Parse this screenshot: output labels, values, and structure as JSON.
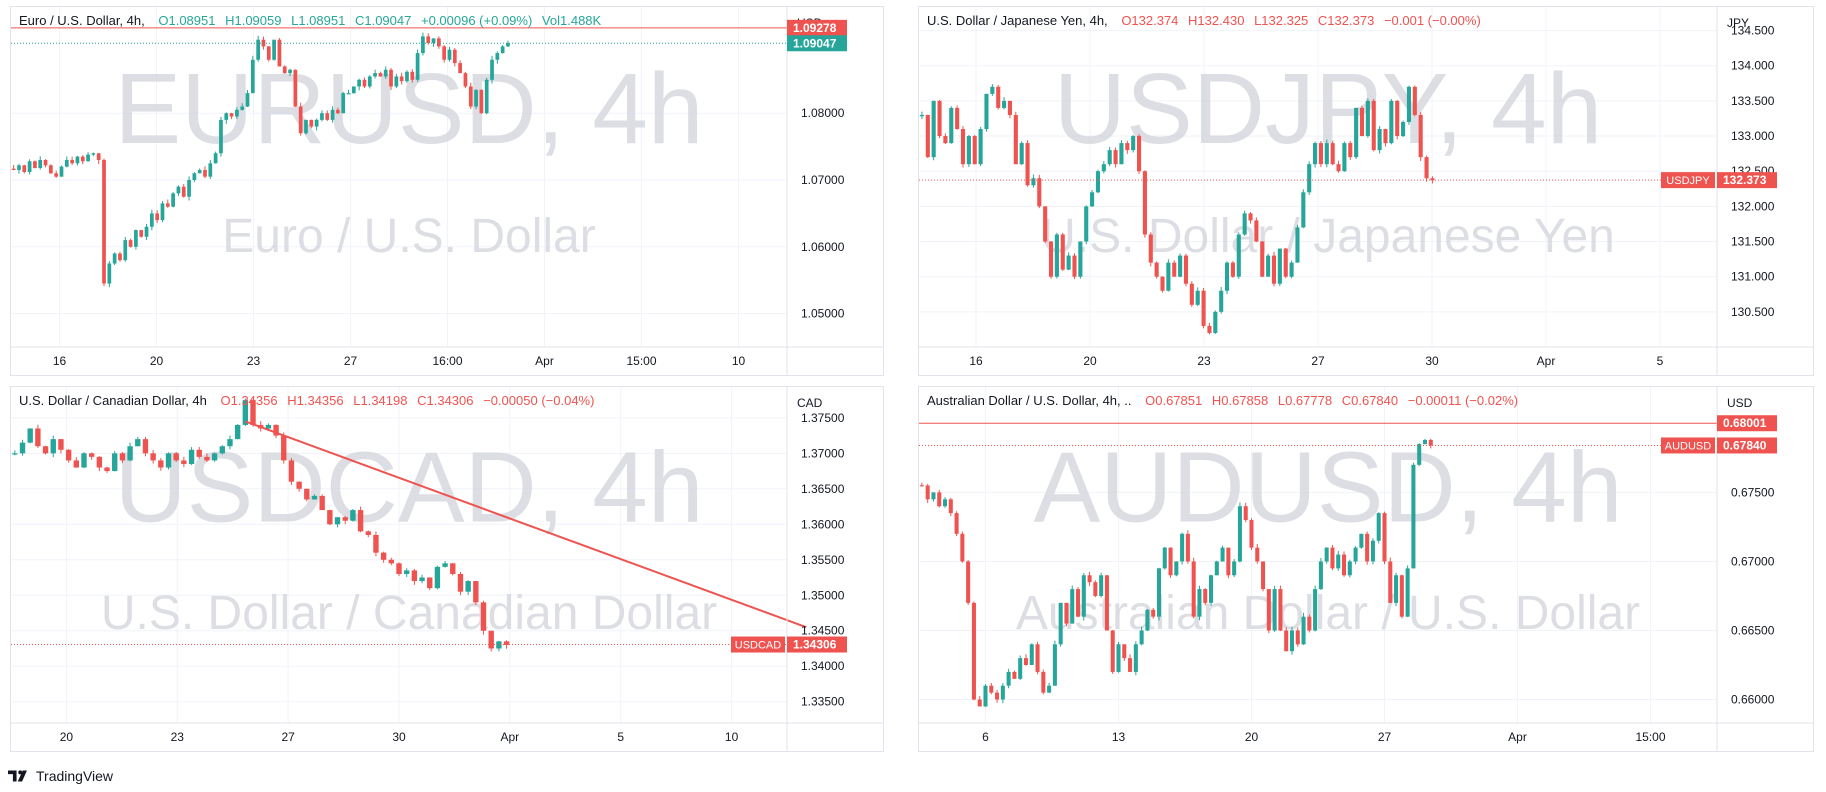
{
  "app": {
    "brand": "TradingView"
  },
  "colors": {
    "up": "#26a69a",
    "down": "#ef5350",
    "grid": "#f0f3fa",
    "text": "#131722",
    "watermark": "#d1d4dc"
  },
  "panes": [
    {
      "id": "eurusd",
      "legend": {
        "title": "Euro / U.S. Dollar, 4h,",
        "o": "O1.08951",
        "h": "H1.09059",
        "l": "L1.08951",
        "c": "C1.09047",
        "chg": "+0.00096 (+0.09%)",
        "vol": "Vol1.488K",
        "dir": "up"
      },
      "watermark": {
        "symbol": "EURUSD, 4h",
        "name": "Euro / U.S. Dollar"
      },
      "currency": "USD",
      "y_ticks": [
        "1.08000",
        "1.07000",
        "1.06000",
        "1.05000"
      ],
      "x_ticks": [
        "16",
        "20",
        "23",
        "27",
        "16:00",
        "Apr",
        "15:00",
        "10"
      ],
      "price_labels": [
        {
          "text": "1.09278",
          "color": "#ef5350"
        },
        {
          "text": "1.09047",
          "color": "#26a69a"
        }
      ]
    },
    {
      "id": "usdjpy",
      "legend": {
        "title": "U.S. Dollar / Japanese Yen, 4h,",
        "o": "O132.374",
        "h": "H132.430",
        "l": "L132.325",
        "c": "C132.373",
        "chg": "−0.001 (−0.00%)",
        "dir": "down"
      },
      "watermark": {
        "symbol": "USDJPY, 4h",
        "name": "U.S. Dollar / Japanese Yen"
      },
      "currency": "JPY",
      "y_ticks": [
        "134.500",
        "134.000",
        "133.500",
        "133.000",
        "132.500",
        "132.000",
        "131.500",
        "131.000",
        "130.500"
      ],
      "x_ticks": [
        "16",
        "20",
        "23",
        "27",
        "30",
        "Apr",
        "5"
      ],
      "price_labels": [
        {
          "text": "132.373",
          "color": "#ef5350",
          "tag": "USDJPY"
        }
      ]
    },
    {
      "id": "usdcad",
      "legend": {
        "title": "U.S. Dollar / Canadian Dollar, 4h",
        "o": "O1.34356",
        "h": "H1.34356",
        "l": "L1.34198",
        "c": "C1.34306",
        "chg": "−0.00050 (−0.04%)",
        "dir": "down"
      },
      "watermark": {
        "symbol": "USDCAD, 4h",
        "name": "U.S. Dollar / Canadian Dollar"
      },
      "currency": "CAD",
      "y_ticks": [
        "1.37500",
        "1.37000",
        "1.36500",
        "1.36000",
        "1.35500",
        "1.35000",
        "1.34500",
        "1.34000",
        "1.33500"
      ],
      "x_ticks": [
        "20",
        "23",
        "27",
        "30",
        "Apr",
        "5",
        "10"
      ],
      "price_labels": [
        {
          "text": "1.34306",
          "color": "#ef5350",
          "tag": "USDCAD"
        }
      ]
    },
    {
      "id": "audusd",
      "legend": {
        "title": "Australian Dollar / U.S. Dollar, 4h, ..",
        "o": "O0.67851",
        "h": "H0.67858",
        "l": "L0.67778",
        "c": "C0.67840",
        "chg": "−0.00011 (−0.02%)",
        "dir": "down"
      },
      "watermark": {
        "symbol": "AUDUSD, 4h",
        "name": "Australian Dollar / U.S. Dollar"
      },
      "currency": "USD",
      "y_ticks": [
        "0.67500",
        "0.67000",
        "0.66500",
        "0.66000"
      ],
      "x_ticks": [
        "6",
        "13",
        "20",
        "27",
        "Apr",
        "15:00"
      ],
      "price_labels": [
        {
          "text": "0.68001",
          "color": "#ef5350"
        },
        {
          "text": "0.67840",
          "color": "#ef5350",
          "tag": "AUDUSD"
        }
      ]
    }
  ],
  "chart_data": [
    {
      "type": "candlestick",
      "symbol": "EURUSD",
      "timeframe": "4h",
      "ylim": [
        1.045,
        1.095
      ],
      "y_tick_values": [
        1.08,
        1.07,
        1.06,
        1.05
      ],
      "last": 1.09047,
      "horizontal_line": 1.09278,
      "closes": [
        1.0715,
        1.0722,
        1.0712,
        1.0728,
        1.0718,
        1.073,
        1.0722,
        1.071,
        1.0705,
        1.072,
        1.073,
        1.0725,
        1.0735,
        1.0728,
        1.0738,
        1.074,
        1.073,
        1.0545,
        1.0575,
        1.059,
        1.058,
        1.061,
        1.06,
        1.0625,
        1.0615,
        1.063,
        1.065,
        1.064,
        1.0665,
        1.066,
        1.068,
        1.069,
        1.0675,
        1.07,
        1.071,
        1.0715,
        1.0705,
        1.0725,
        1.074,
        1.079,
        1.08,
        1.0795,
        1.0805,
        1.081,
        1.083,
        1.088,
        1.091,
        1.09,
        1.088,
        1.091,
        1.087,
        1.086,
        1.0865,
        1.081,
        1.077,
        1.079,
        1.078,
        1.079,
        1.08,
        1.079,
        1.0805,
        1.08,
        1.083,
        1.083,
        1.084,
        1.085,
        1.084,
        1.0855,
        1.086,
        1.0855,
        1.0865,
        1.084,
        1.0855,
        1.0848,
        1.0862,
        1.085,
        1.089,
        1.0915,
        1.0905,
        1.0912,
        1.09,
        1.088,
        1.0895,
        1.0875,
        1.086,
        1.084,
        1.081,
        1.0835,
        1.08,
        1.085,
        1.088,
        1.089,
        1.09,
        1.0905
      ]
    },
    {
      "type": "candlestick",
      "symbol": "USDJPY",
      "timeframe": "4h",
      "ylim": [
        130.0,
        134.75
      ],
      "y_tick_values": [
        134.5,
        134.0,
        133.5,
        133.0,
        132.5,
        132.0,
        131.5,
        131.0,
        130.5
      ],
      "last": 132.373,
      "closes": [
        133.3,
        132.7,
        133.5,
        133.0,
        132.9,
        133.4,
        133.1,
        132.6,
        133.0,
        132.6,
        133.1,
        133.6,
        133.7,
        133.4,
        133.5,
        133.3,
        132.6,
        132.9,
        132.3,
        132.4,
        132.0,
        131.5,
        131.0,
        131.6,
        131.1,
        131.3,
        131.0,
        131.5,
        132.0,
        132.2,
        132.5,
        132.6,
        132.8,
        132.6,
        132.9,
        132.8,
        133.0,
        132.5,
        131.6,
        131.2,
        131.0,
        130.8,
        131.2,
        131.0,
        131.3,
        130.9,
        130.6,
        130.8,
        130.3,
        130.2,
        130.5,
        130.8,
        131.2,
        131.0,
        131.6,
        131.9,
        131.8,
        131.5,
        131.0,
        131.3,
        130.9,
        131.4,
        131.0,
        131.2,
        131.7,
        132.2,
        132.6,
        132.9,
        132.6,
        132.9,
        132.6,
        132.5,
        132.9,
        132.7,
        133.4,
        133.0,
        133.5,
        132.8,
        133.1,
        132.9,
        133.5,
        133.0,
        133.2,
        133.7,
        133.3,
        132.7,
        132.4,
        132.37
      ]
    },
    {
      "type": "candlestick",
      "symbol": "USDCAD",
      "timeframe": "4h",
      "ylim": [
        1.332,
        1.3785
      ],
      "y_tick_values": [
        1.375,
        1.37,
        1.365,
        1.36,
        1.355,
        1.35,
        1.345,
        1.34,
        1.335
      ],
      "last": 1.34306,
      "trendline": [
        [
          30,
          1.3745
        ],
        [
          103,
          1.3455
        ]
      ],
      "closes": [
        1.37,
        1.3715,
        1.3735,
        1.371,
        1.37,
        1.372,
        1.3705,
        1.369,
        1.368,
        1.37,
        1.3695,
        1.368,
        1.3675,
        1.37,
        1.369,
        1.371,
        1.372,
        1.37,
        1.369,
        1.368,
        1.37,
        1.369,
        1.3685,
        1.3705,
        1.3695,
        1.369,
        1.37,
        1.371,
        1.372,
        1.374,
        1.3775,
        1.374,
        1.3735,
        1.374,
        1.3725,
        1.369,
        1.366,
        1.365,
        1.3635,
        1.364,
        1.362,
        1.36,
        1.361,
        1.3605,
        1.362,
        1.359,
        1.3585,
        1.356,
        1.355,
        1.3545,
        1.353,
        1.3535,
        1.352,
        1.3525,
        1.351,
        1.354,
        1.3545,
        1.353,
        1.3505,
        1.352,
        1.349,
        1.345,
        1.3425,
        1.3435,
        1.343
      ]
    },
    {
      "type": "candlestick",
      "symbol": "AUDUSD",
      "timeframe": "4h",
      "ylim": [
        0.6583,
        0.6822
      ],
      "y_tick_values": [
        0.675,
        0.67,
        0.665,
        0.66
      ],
      "last": 0.6784,
      "horizontal_line": 0.68001,
      "closes": [
        0.6755,
        0.6745,
        0.675,
        0.674,
        0.6745,
        0.6735,
        0.672,
        0.67,
        0.667,
        0.66,
        0.6595,
        0.661,
        0.6605,
        0.66,
        0.661,
        0.662,
        0.6615,
        0.663,
        0.6625,
        0.664,
        0.662,
        0.6605,
        0.661,
        0.664,
        0.667,
        0.6655,
        0.668,
        0.666,
        0.669,
        0.6685,
        0.6675,
        0.669,
        0.665,
        0.662,
        0.664,
        0.663,
        0.662,
        0.664,
        0.665,
        0.6665,
        0.666,
        0.6695,
        0.671,
        0.669,
        0.67,
        0.672,
        0.67,
        0.666,
        0.668,
        0.667,
        0.669,
        0.67,
        0.671,
        0.669,
        0.67,
        0.674,
        0.673,
        0.671,
        0.67,
        0.668,
        0.665,
        0.668,
        0.665,
        0.6635,
        0.665,
        0.664,
        0.666,
        0.665,
        0.668,
        0.67,
        0.671,
        0.6695,
        0.6705,
        0.669,
        0.67,
        0.671,
        0.672,
        0.67,
        0.6715,
        0.6735,
        0.67,
        0.667,
        0.669,
        0.666,
        0.6695,
        0.677,
        0.6785,
        0.6788,
        0.6784
      ]
    }
  ]
}
